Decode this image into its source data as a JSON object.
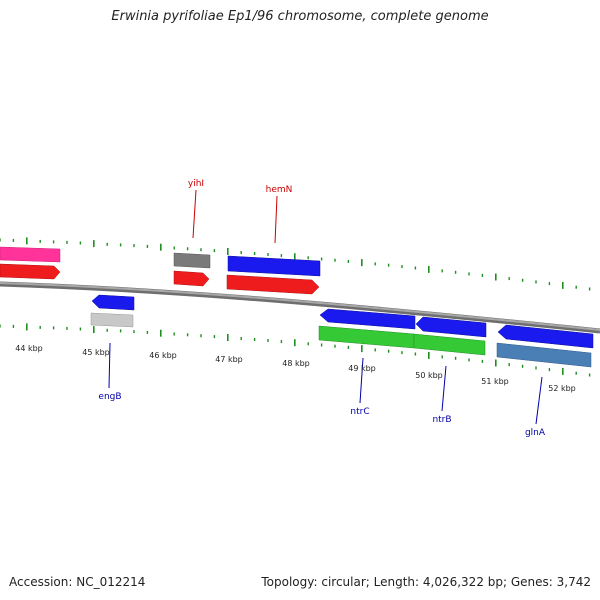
{
  "title": "Erwinia pyrifoliae Ep1/96 chromosome, complete genome",
  "footer": {
    "accession": "Accession: NC_012214",
    "stats": "Topology: circular; Length: 4,026,322 bp; Genes: 3,742"
  },
  "kbp_labels": [
    "44 kbp",
    "45 kbp",
    "46 kbp",
    "47 kbp",
    "48 kbp",
    "49 kbp",
    "50 kbp",
    "51 kbp",
    "52 kbp"
  ],
  "gene_labels": {
    "yihI": "yihI",
    "hemN": "hemN",
    "engB": "engB",
    "ntrC": "ntrC",
    "ntrB": "ntrB",
    "glnA": "glnA"
  },
  "colors": {
    "backbone": "#8c8c8c",
    "tick": "#1f8f1f",
    "cds_forward": "#ee1c1c",
    "cds_reverse": "#1a1aee",
    "rna": "#ff3399",
    "gray_feature": "#7a7a7a",
    "light_gray_feature": "#c8c8c8",
    "green_feature": "#36c936",
    "steelblue_feature": "#4a7fb5",
    "label_forward": "#cc0000",
    "label_reverse": "#0000aa"
  }
}
